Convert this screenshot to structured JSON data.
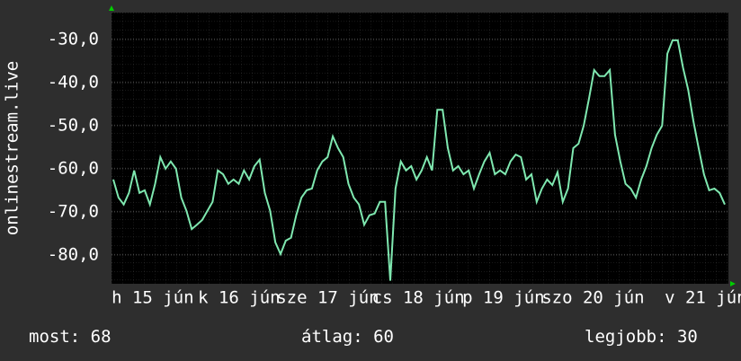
{
  "chart_data": {
    "type": "line",
    "y_label": "onlinestream.live",
    "ylim": [
      -86.7,
      -23.75
    ],
    "yticks": [
      {
        "value": -30,
        "label": "-30,0"
      },
      {
        "value": -40,
        "label": "-40,0"
      },
      {
        "value": -50,
        "label": "-50,0"
      },
      {
        "value": -60,
        "label": "-60,0"
      },
      {
        "value": -70,
        "label": "-70,0"
      },
      {
        "value": -80,
        "label": "-80,0"
      }
    ],
    "x_labels": [
      "h 15 jún",
      "k 16 jún",
      "sze 17 jún",
      "cs 18 jún",
      "p 19 jún",
      "szo 20 jún",
      "v 21 jún"
    ],
    "grid": true,
    "series": [
      {
        "color": "#7fe8b0",
        "values": [
          -62.5,
          -66.7,
          -68.3,
          -65.6,
          -60.4,
          -65.6,
          -65,
          -68.3,
          -63.5,
          -57.3,
          -60,
          -58.3,
          -60,
          -66.7,
          -69.8,
          -74,
          -73,
          -71.9,
          -69.8,
          -67.7,
          -60.4,
          -61.3,
          -63.5,
          -62.5,
          -63.5,
          -60.4,
          -62.5,
          -59.4,
          -57.9,
          -65.6,
          -69.8,
          -77.1,
          -79.8,
          -76.7,
          -76,
          -70.8,
          -66.7,
          -65,
          -64.6,
          -60.4,
          -58.3,
          -57.3,
          -52.5,
          -55.2,
          -57.3,
          -63.5,
          -66.7,
          -68.3,
          -73,
          -70.8,
          -70.4,
          -67.7,
          -67.7,
          -86,
          -64.6,
          -58.3,
          -60.4,
          -59.4,
          -62.5,
          -60.4,
          -57.3,
          -60.4,
          -46.3,
          -46.3,
          -55.2,
          -60.4,
          -59.4,
          -61.3,
          -60.4,
          -64.6,
          -61.3,
          -58.3,
          -56.3,
          -61.3,
          -60.4,
          -61.3,
          -58.3,
          -56.7,
          -57.3,
          -62.5,
          -61.3,
          -67.7,
          -64.6,
          -62.5,
          -63.8,
          -60.8,
          -67.7,
          -64.6,
          -55.2,
          -54.2,
          -50,
          -43.8,
          -37.1,
          -38.5,
          -38.5,
          -37.1,
          -52.1,
          -58.3,
          -63.5,
          -64.6,
          -66.7,
          -62.5,
          -59.4,
          -55.2,
          -52.1,
          -50,
          -33.3,
          -30.2,
          -30.2,
          -36.5,
          -41.7,
          -49,
          -55.2,
          -61.3,
          -65,
          -64.6,
          -65.6,
          -68.3
        ]
      }
    ],
    "stats": [
      {
        "label": "most:",
        "value": 68
      },
      {
        "label": "átlag:",
        "value": 60
      },
      {
        "label": "legjobb:",
        "value": 30
      }
    ]
  }
}
